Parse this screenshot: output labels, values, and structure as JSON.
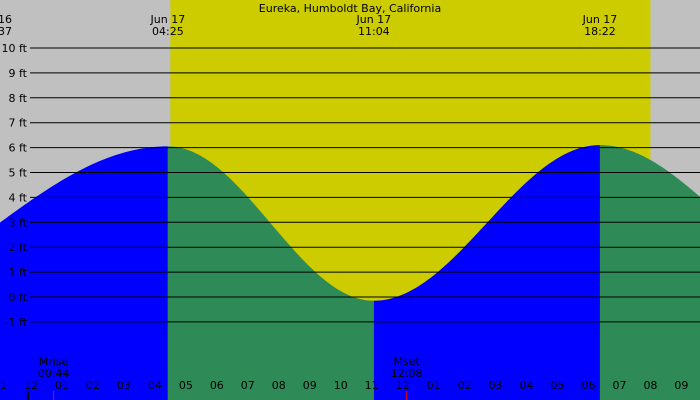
{
  "colors": {
    "night": "#c0c0c0",
    "day": "#cccc00",
    "rising": "#0000ff",
    "falling": "#2e8b57",
    "grid": "#000000",
    "moon_marker": "#ff0000"
  },
  "chart_data": {
    "type": "area",
    "title": "Eureka, Humboldt Bay, California",
    "x_unit": "hour",
    "xlim": [
      -13.0,
      9.6
    ],
    "ylim": [
      -2.0,
      10.0
    ],
    "y_ticks": [
      -1,
      0,
      1,
      2,
      3,
      4,
      5,
      6,
      7,
      8,
      9,
      10
    ],
    "y_tick_labels": [
      "-1 ft",
      "0 ft",
      "1 ft",
      "2 ft",
      "3 ft",
      "4 ft",
      "5 ft",
      "6 ft",
      "7 ft",
      "8 ft",
      "9 ft",
      "10 ft"
    ],
    "x_ticks": [
      -13,
      -12,
      -11,
      -10,
      -9,
      -8,
      -7,
      -6,
      -5,
      -4,
      -3,
      -2,
      -1,
      0,
      1,
      2,
      3,
      4,
      5,
      6,
      7,
      8,
      9
    ],
    "x_tick_labels": [
      "11",
      "12",
      "01",
      "02",
      "03",
      "04",
      "05",
      "06",
      "07",
      "08",
      "09",
      "10",
      "11",
      "12",
      "01",
      "02",
      "03",
      "04",
      "05",
      "06",
      "07",
      "08",
      "09"
    ],
    "daylight": [
      -7.5,
      8.0
    ],
    "extrema": [
      {
        "x": -19.0,
        "y": -0.6,
        "type": "low",
        "top_label": [
          "16",
          "37"
        ]
      },
      {
        "x": -7.58,
        "y": 6.05,
        "type": "high",
        "top_label": [
          "Jun 17",
          "04:25"
        ]
      },
      {
        "x": -0.93,
        "y": -0.15,
        "type": "low",
        "top_label": [
          "Jun 17",
          "11:04"
        ]
      },
      {
        "x": 6.37,
        "y": 6.1,
        "type": "high",
        "top_label": [
          "Jun 17",
          "18:22"
        ]
      },
      {
        "x": 13.7,
        "y": 1.0,
        "type": "low",
        "top_label": null
      }
    ],
    "moon_events": [
      {
        "label": "Mrise",
        "time": "00:44",
        "x": -11.27
      },
      {
        "label": "Mset",
        "time": "12:08",
        "x": 0.13
      }
    ],
    "tick_markers": [
      -12.1
    ]
  }
}
